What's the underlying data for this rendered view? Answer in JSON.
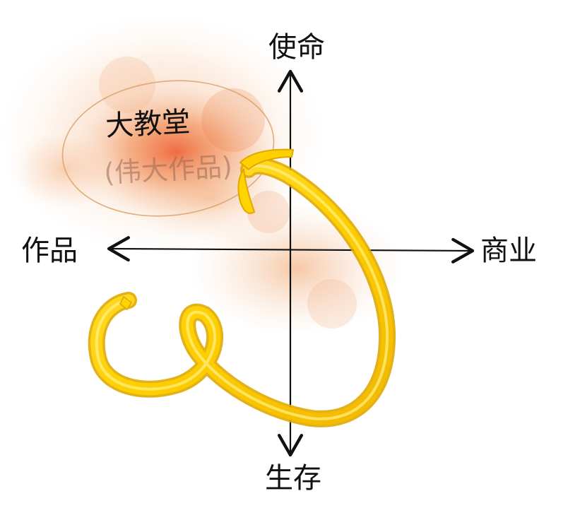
{
  "axes": {
    "top_label": "使命",
    "bottom_label": "生存",
    "left_label": "作品",
    "right_label": "商业"
  },
  "region": {
    "title": "大教堂",
    "subtitle": "(伟大作品)"
  },
  "colors": {
    "axis": "#111111",
    "ribbon": "#FFD400",
    "ribbon_shade": "#E0A800",
    "splash_warm": "#EE7A3C",
    "splash_light": "#F6B27A",
    "ellipse_outline": "#D9A066"
  }
}
